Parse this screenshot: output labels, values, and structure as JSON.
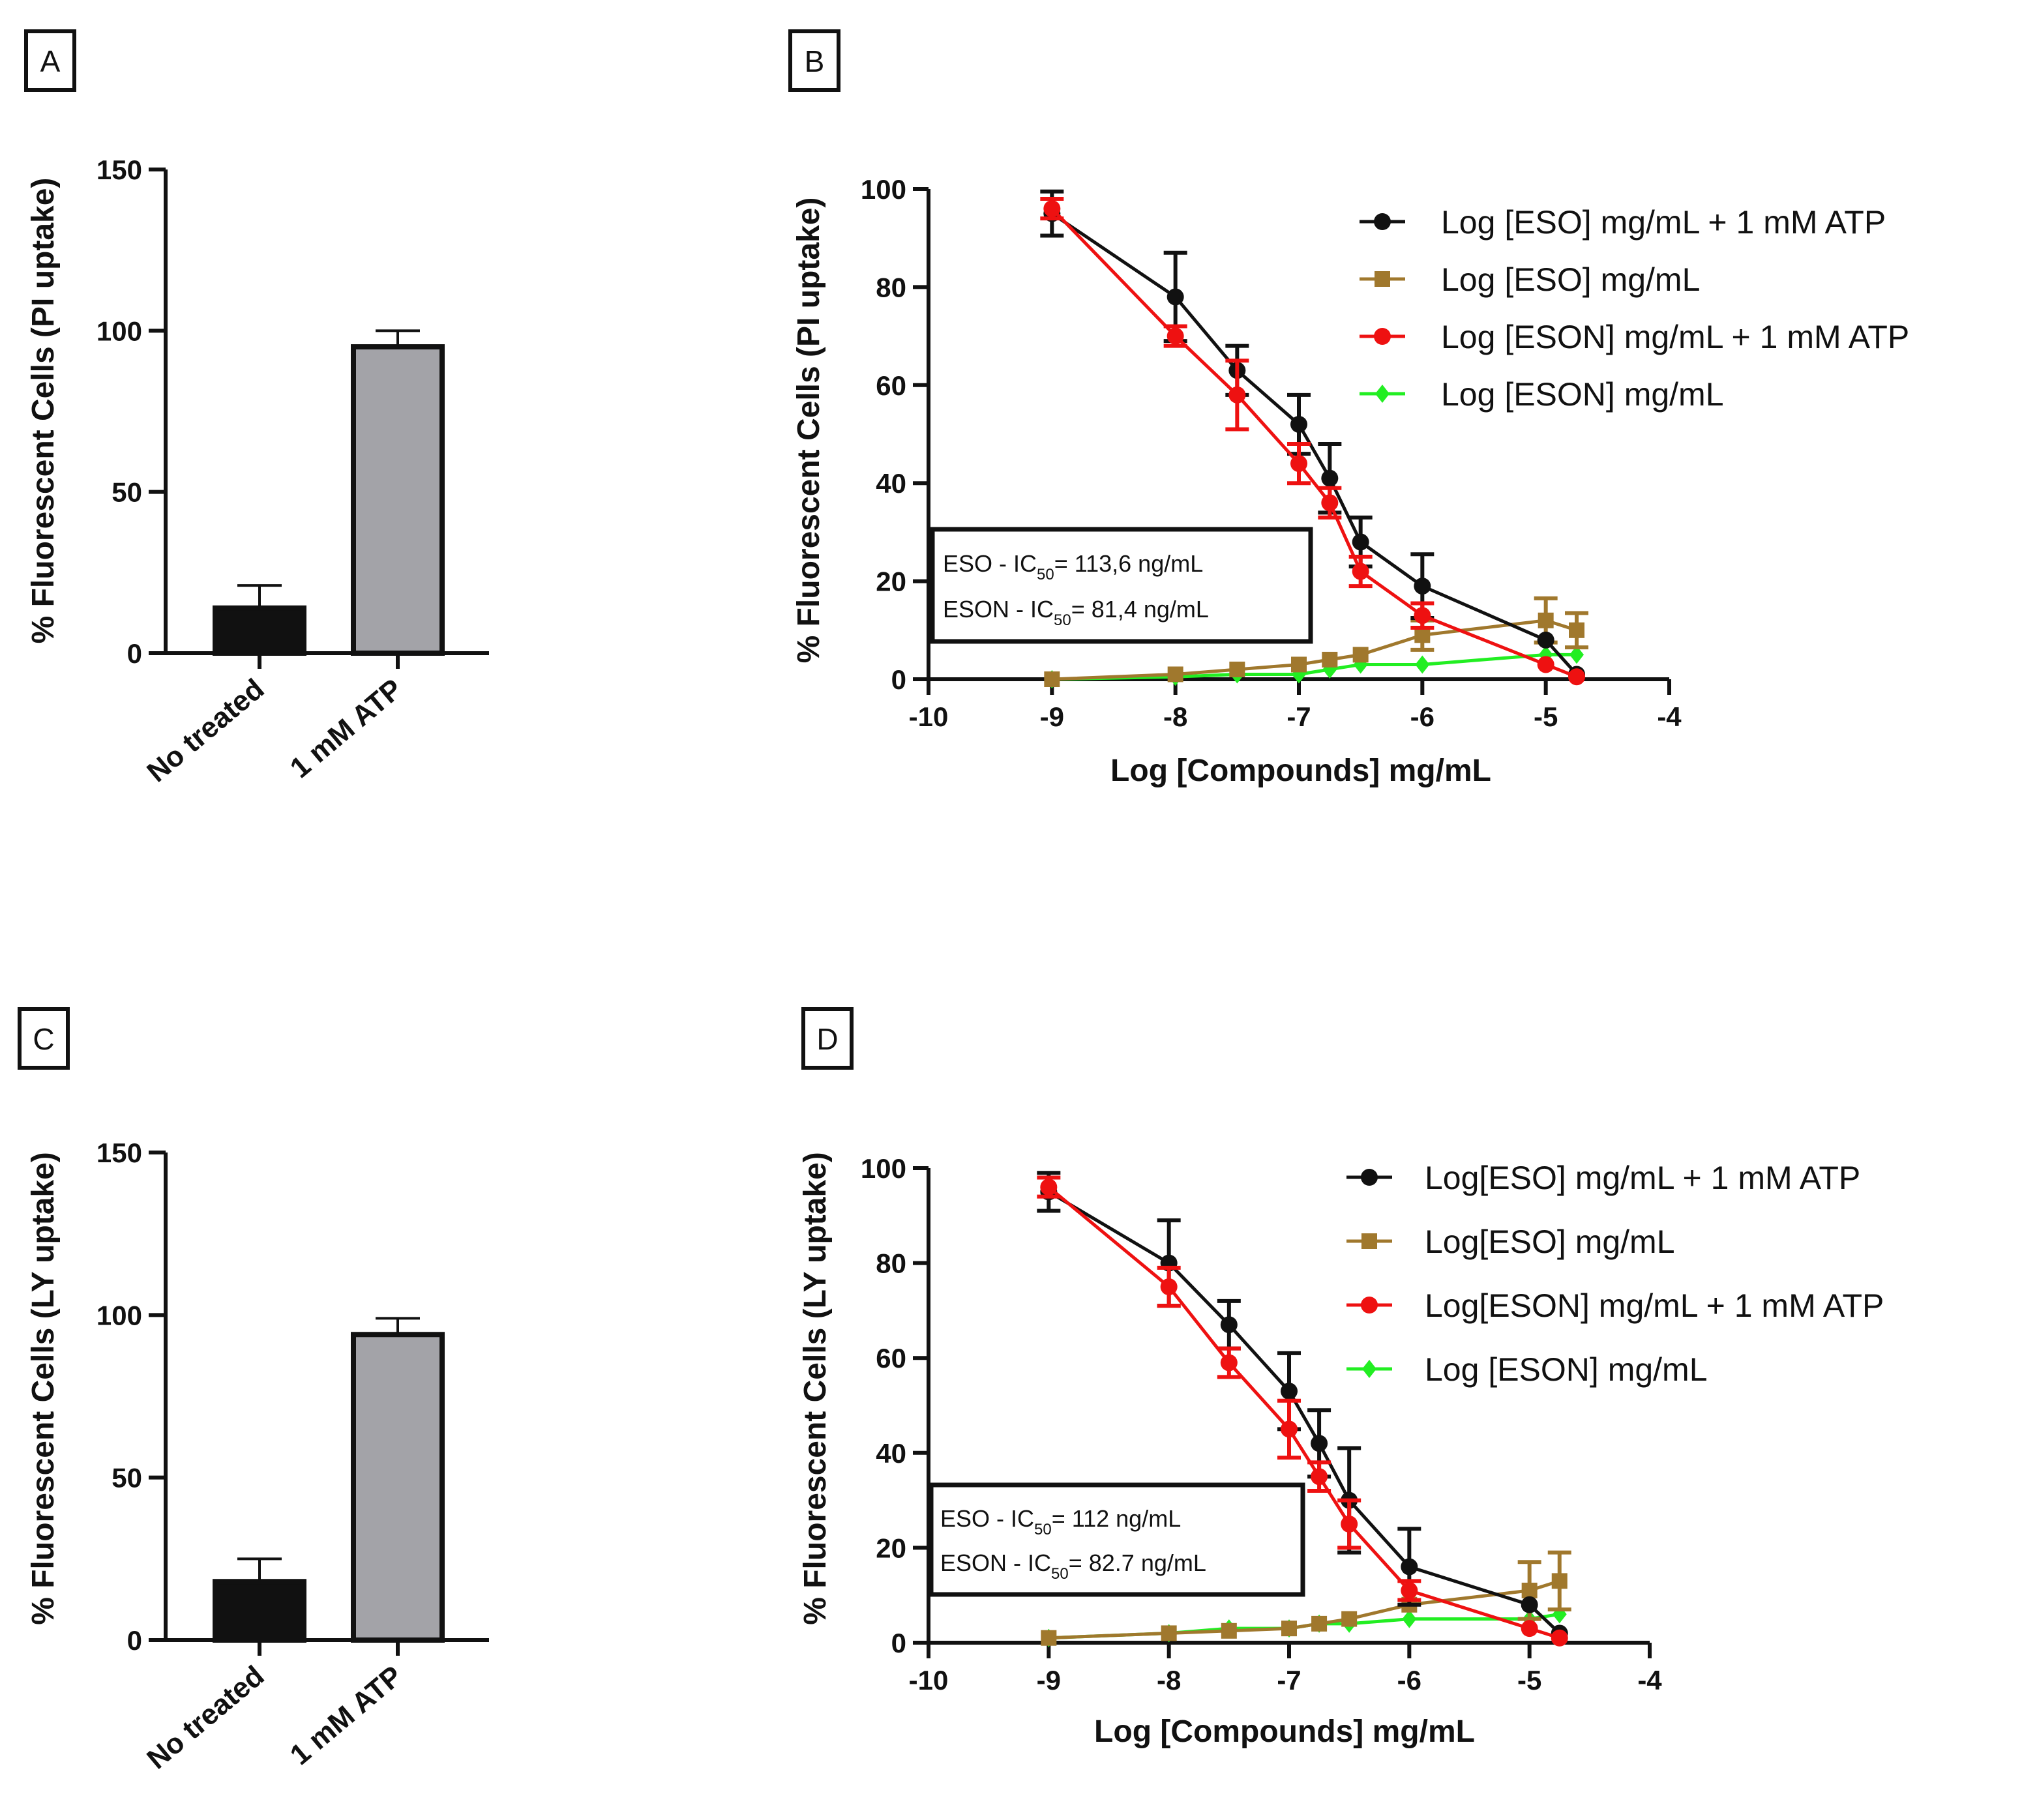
{
  "colors": {
    "black": "#111111",
    "brown": "#a0782d",
    "red": "#ee1111",
    "green": "#22ee22",
    "gray_bar": "#a3a3a8"
  },
  "chart_data": [
    {
      "panel": "A",
      "type": "bar",
      "ylabel": "% Fluorescent Cells (PI uptake)",
      "ylim": [
        0,
        150
      ],
      "yticks": [
        0,
        50,
        100,
        150
      ],
      "categories": [
        "No treated",
        "1 mM ATP"
      ],
      "values": [
        14,
        95
      ],
      "errors": [
        7,
        5
      ],
      "bar_colors": [
        "black",
        "gray"
      ]
    },
    {
      "panel": "B",
      "type": "line",
      "ylabel": "% Fluorescent Cells (PI uptake)",
      "xlabel": "Log [Compounds] mg/mL",
      "xlim": [
        -10,
        -4
      ],
      "ylim": [
        0,
        100
      ],
      "xticks": [
        -10,
        -9,
        -8,
        -7,
        -6,
        -5,
        -4
      ],
      "yticks": [
        0,
        20,
        40,
        60,
        80,
        100
      ],
      "annotation": {
        "line1_prefix": "ESO - IC",
        "line1_sub": "50",
        "line1_suffix": "= 113,6 ng/mL",
        "line2_prefix": "ESON - IC",
        "line2_sub": "50",
        "line2_suffix": "= 81,4 ng/mL"
      },
      "series": [
        {
          "name": "Log [ESO] mg/mL + 1 mM ATP",
          "color": "black",
          "marker": "circle",
          "x": [
            -9,
            -8,
            -7.5,
            -7,
            -6.75,
            -6.5,
            -6,
            -5,
            -4.75
          ],
          "y": [
            95,
            78,
            63,
            52,
            41,
            28,
            19,
            8,
            1
          ],
          "err": [
            4.5,
            9,
            5,
            6,
            7,
            5,
            6.5,
            0,
            0
          ]
        },
        {
          "name": "Log [ESO] mg/mL",
          "color": "brown",
          "marker": "square",
          "x": [
            -9,
            -8,
            -7.5,
            -7,
            -6.75,
            -6.5,
            -6,
            -5,
            -4.75
          ],
          "y": [
            0,
            1,
            2,
            3,
            4,
            5,
            9,
            12,
            10
          ],
          "err": [
            0,
            0,
            0,
            0,
            0,
            0,
            3,
            4.5,
            3.5
          ]
        },
        {
          "name": "Log [ESON] mg/mL + 1 mM ATP",
          "color": "red",
          "marker": "circle",
          "x": [
            -9,
            -8,
            -7.5,
            -7,
            -6.75,
            -6.5,
            -6,
            -5,
            -4.75
          ],
          "y": [
            96,
            70,
            58,
            44,
            36,
            22,
            13,
            3,
            0.5
          ],
          "err": [
            2,
            2,
            7,
            4,
            3,
            3,
            2.5,
            0,
            0
          ]
        },
        {
          "name": "Log [ESON] mg/mL",
          "color": "green",
          "marker": "diamond",
          "x": [
            -9,
            -8,
            -7.5,
            -7,
            -6.75,
            -6.5,
            -6,
            -5,
            -4.75
          ],
          "y": [
            0,
            0.5,
            1,
            1,
            2,
            3,
            3,
            5,
            5
          ],
          "err": [
            0,
            0,
            0,
            0,
            0,
            0,
            0,
            0,
            0
          ]
        }
      ]
    },
    {
      "panel": "C",
      "type": "bar",
      "ylabel": "% Fluorescent Cells (LY uptake)",
      "ylim": [
        0,
        150
      ],
      "yticks": [
        0,
        50,
        100,
        150
      ],
      "categories": [
        "No treated",
        "1 mM ATP"
      ],
      "values": [
        18,
        94
      ],
      "errors": [
        7,
        5
      ],
      "bar_colors": [
        "black",
        "gray"
      ]
    },
    {
      "panel": "D",
      "type": "line",
      "ylabel": "% Fluorescent Cells (LY uptake)",
      "xlabel": "Log [Compounds] mg/mL",
      "xlim": [
        -10,
        -4
      ],
      "ylim": [
        0,
        100
      ],
      "xticks": [
        -10,
        -9,
        -8,
        -7,
        -6,
        -5,
        -4
      ],
      "yticks": [
        0,
        20,
        40,
        60,
        80,
        100
      ],
      "annotation": {
        "line1_prefix": "ESO - IC",
        "line1_sub": "50",
        "line1_suffix": "= 112 ng/mL",
        "line2_prefix": "ESON - IC",
        "line2_sub": "50",
        "line2_suffix": "= 82.7 ng/mL"
      },
      "series": [
        {
          "name": "Log[ESO] mg/mL + 1 mM ATP",
          "color": "black",
          "marker": "circle",
          "x": [
            -9,
            -8,
            -7.5,
            -7,
            -6.75,
            -6.5,
            -6,
            -5,
            -4.75
          ],
          "y": [
            95,
            80,
            67,
            53,
            42,
            30,
            16,
            8,
            2
          ],
          "err": [
            4,
            9,
            5,
            8,
            7,
            11,
            8,
            0,
            0
          ]
        },
        {
          "name": "Log[ESO] mg/mL",
          "color": "brown",
          "marker": "square",
          "x": [
            -9,
            -8,
            -7.5,
            -7,
            -6.75,
            -6.5,
            -6,
            -5,
            -4.75
          ],
          "y": [
            1,
            2,
            2.5,
            3,
            4,
            5,
            8,
            11,
            13
          ],
          "err": [
            0,
            0,
            0,
            0,
            0,
            0,
            0,
            6,
            6
          ]
        },
        {
          "name": "Log[ESON] mg/mL +  1 mM ATP",
          "color": "red",
          "marker": "circle",
          "x": [
            -9,
            -8,
            -7.5,
            -7,
            -6.75,
            -6.5,
            -6,
            -5,
            -4.75
          ],
          "y": [
            96,
            75,
            59,
            45,
            35,
            25,
            11,
            3,
            1
          ],
          "err": [
            2,
            4,
            3,
            6,
            3,
            5,
            2,
            0,
            0
          ]
        },
        {
          "name": "Log [ESON] mg/mL",
          "color": "green",
          "marker": "diamond",
          "x": [
            -9,
            -8,
            -7.5,
            -7,
            -6.75,
            -6.5,
            -6,
            -5,
            -4.75
          ],
          "y": [
            1,
            2,
            3,
            3,
            4,
            4,
            5,
            5,
            6
          ],
          "err": [
            0,
            0,
            0,
            0,
            0,
            0,
            0,
            0,
            0
          ]
        }
      ]
    }
  ]
}
